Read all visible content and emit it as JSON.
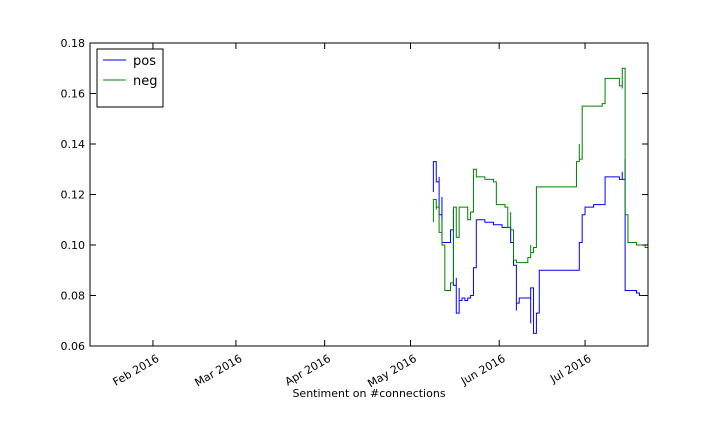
{
  "chart_data": {
    "type": "line",
    "title": "",
    "xlabel": "Sentiment on #connections",
    "ylabel": "",
    "ylim": [
      0.06,
      0.18
    ],
    "xlim": [
      "2016-01-10",
      "2016-07-23"
    ],
    "x_ticks": [
      {
        "date": "2016-02-01",
        "label": "Feb 2016"
      },
      {
        "date": "2016-03-01",
        "label": "Mar 2016"
      },
      {
        "date": "2016-04-01",
        "label": "Apr 2016"
      },
      {
        "date": "2016-05-01",
        "label": "May 2016"
      },
      {
        "date": "2016-06-01",
        "label": "Jun 2016"
      },
      {
        "date": "2016-07-01",
        "label": "Jul 2016"
      }
    ],
    "y_ticks": [
      {
        "value": 0.06,
        "label": "0.06"
      },
      {
        "value": 0.08,
        "label": "0.08"
      },
      {
        "value": 0.1,
        "label": "0.10"
      },
      {
        "value": 0.12,
        "label": "0.12"
      },
      {
        "value": 0.14,
        "label": "0.14"
      },
      {
        "value": 0.16,
        "label": "0.16"
      },
      {
        "value": 0.18,
        "label": "0.18"
      }
    ],
    "legend": {
      "placement": "top-left"
    },
    "grid": false,
    "series": [
      {
        "name": "pos",
        "color": "#0000ff",
        "step": true,
        "points": [
          [
            "2016-05-09",
            0.121
          ],
          [
            "2016-05-09",
            0.128
          ],
          [
            "2016-05-09",
            0.133
          ],
          [
            "2016-05-10",
            0.13
          ],
          [
            "2016-05-10",
            0.125
          ],
          [
            "2016-05-11",
            0.127
          ],
          [
            "2016-05-11",
            0.121
          ],
          [
            "2016-05-11",
            0.112
          ],
          [
            "2016-05-12",
            0.119
          ],
          [
            "2016-05-12",
            0.101
          ],
          [
            "2016-05-13",
            0.101
          ],
          [
            "2016-05-14",
            0.101
          ],
          [
            "2016-05-15",
            0.101
          ],
          [
            "2016-05-15",
            0.106
          ],
          [
            "2016-05-16",
            0.114
          ],
          [
            "2016-05-16",
            0.084
          ],
          [
            "2016-05-17",
            0.087
          ],
          [
            "2016-05-17",
            0.073
          ],
          [
            "2016-05-18",
            0.083
          ],
          [
            "2016-05-18",
            0.078
          ],
          [
            "2016-05-19",
            0.079
          ],
          [
            "2016-05-20",
            0.078
          ],
          [
            "2016-05-21",
            0.079
          ],
          [
            "2016-05-22",
            0.08
          ],
          [
            "2016-05-23",
            0.08
          ],
          [
            "2016-05-23",
            0.091
          ],
          [
            "2016-05-24",
            0.094
          ],
          [
            "2016-05-24",
            0.11
          ],
          [
            "2016-05-27",
            0.109
          ],
          [
            "2016-05-30",
            0.108
          ],
          [
            "2016-06-02",
            0.107
          ],
          [
            "2016-06-05",
            0.101
          ],
          [
            "2016-06-06",
            0.092
          ],
          [
            "2016-06-07",
            0.074
          ],
          [
            "2016-06-07",
            0.077
          ],
          [
            "2016-06-08",
            0.079
          ],
          [
            "2016-06-11",
            0.079
          ],
          [
            "2016-06-12",
            0.069
          ],
          [
            "2016-06-12",
            0.083
          ],
          [
            "2016-06-13",
            0.07
          ],
          [
            "2016-06-13",
            0.065
          ],
          [
            "2016-06-14",
            0.073
          ],
          [
            "2016-06-15",
            0.09
          ],
          [
            "2016-06-20",
            0.09
          ],
          [
            "2016-06-25",
            0.09
          ],
          [
            "2016-06-29",
            0.09
          ],
          [
            "2016-06-29",
            0.101
          ],
          [
            "2016-06-30",
            0.104
          ],
          [
            "2016-06-30",
            0.112
          ],
          [
            "2016-07-01",
            0.115
          ],
          [
            "2016-07-04",
            0.116
          ],
          [
            "2016-07-07",
            0.116
          ],
          [
            "2016-07-08",
            0.127
          ],
          [
            "2016-07-11",
            0.127
          ],
          [
            "2016-07-13",
            0.127
          ],
          [
            "2016-07-13",
            0.126
          ],
          [
            "2016-07-14",
            0.129
          ],
          [
            "2016-07-14",
            0.126
          ],
          [
            "2016-07-15",
            0.134
          ],
          [
            "2016-07-15",
            0.089
          ],
          [
            "2016-07-15",
            0.082
          ],
          [
            "2016-07-17",
            0.082
          ],
          [
            "2016-07-19",
            0.081
          ],
          [
            "2016-07-20",
            0.08
          ],
          [
            "2016-07-22",
            0.08
          ],
          [
            "2016-07-23",
            0.07
          ]
        ]
      },
      {
        "name": "neg",
        "color": "#008000",
        "step": true,
        "points": [
          [
            "2016-05-09",
            0.109
          ],
          [
            "2016-05-09",
            0.118
          ],
          [
            "2016-05-10",
            0.114
          ],
          [
            "2016-05-10",
            0.115
          ],
          [
            "2016-05-11",
            0.111
          ],
          [
            "2016-05-11",
            0.116
          ],
          [
            "2016-05-11",
            0.105
          ],
          [
            "2016-05-12",
            0.11
          ],
          [
            "2016-05-12",
            0.1
          ],
          [
            "2016-05-13",
            0.082
          ],
          [
            "2016-05-14",
            0.082
          ],
          [
            "2016-05-15",
            0.082
          ],
          [
            "2016-05-15",
            0.085
          ],
          [
            "2016-05-16",
            0.087
          ],
          [
            "2016-05-16",
            0.09
          ],
          [
            "2016-05-16",
            0.115
          ],
          [
            "2016-05-17",
            0.111
          ],
          [
            "2016-05-17",
            0.103
          ],
          [
            "2016-05-18",
            0.113
          ],
          [
            "2016-05-18",
            0.115
          ],
          [
            "2016-05-19",
            0.115
          ],
          [
            "2016-05-20",
            0.115
          ],
          [
            "2016-05-21",
            0.11
          ],
          [
            "2016-05-22",
            0.113
          ],
          [
            "2016-05-23",
            0.118
          ],
          [
            "2016-05-23",
            0.13
          ],
          [
            "2016-05-24",
            0.127
          ],
          [
            "2016-05-27",
            0.126
          ],
          [
            "2016-05-30",
            0.125
          ],
          [
            "2016-05-31",
            0.116
          ],
          [
            "2016-06-03",
            0.115
          ],
          [
            "2016-06-04",
            0.107
          ],
          [
            "2016-06-05",
            0.113
          ],
          [
            "2016-06-05",
            0.106
          ],
          [
            "2016-06-06",
            0.098
          ],
          [
            "2016-06-06",
            0.094
          ],
          [
            "2016-06-07",
            0.093
          ],
          [
            "2016-06-08",
            0.093
          ],
          [
            "2016-06-10",
            0.093
          ],
          [
            "2016-06-11",
            0.095
          ],
          [
            "2016-06-12",
            0.1
          ],
          [
            "2016-06-12",
            0.097
          ],
          [
            "2016-06-13",
            0.099
          ],
          [
            "2016-06-14",
            0.118
          ],
          [
            "2016-06-14",
            0.123
          ],
          [
            "2016-06-20",
            0.123
          ],
          [
            "2016-06-28",
            0.123
          ],
          [
            "2016-06-28",
            0.133
          ],
          [
            "2016-06-29",
            0.14
          ],
          [
            "2016-06-29",
            0.134
          ],
          [
            "2016-06-30",
            0.148
          ],
          [
            "2016-06-30",
            0.155
          ],
          [
            "2016-07-05",
            0.155
          ],
          [
            "2016-07-07",
            0.156
          ],
          [
            "2016-07-08",
            0.166
          ],
          [
            "2016-07-11",
            0.166
          ],
          [
            "2016-07-13",
            0.166
          ],
          [
            "2016-07-13",
            0.163
          ],
          [
            "2016-07-14",
            0.162
          ],
          [
            "2016-07-14",
            0.17
          ],
          [
            "2016-07-15",
            0.168
          ],
          [
            "2016-07-15",
            0.112
          ],
          [
            "2016-07-16",
            0.101
          ],
          [
            "2016-07-18",
            0.101
          ],
          [
            "2016-07-19",
            0.1
          ],
          [
            "2016-07-20",
            0.1
          ],
          [
            "2016-07-22",
            0.099
          ],
          [
            "2016-07-23",
            0.093
          ]
        ]
      }
    ]
  }
}
